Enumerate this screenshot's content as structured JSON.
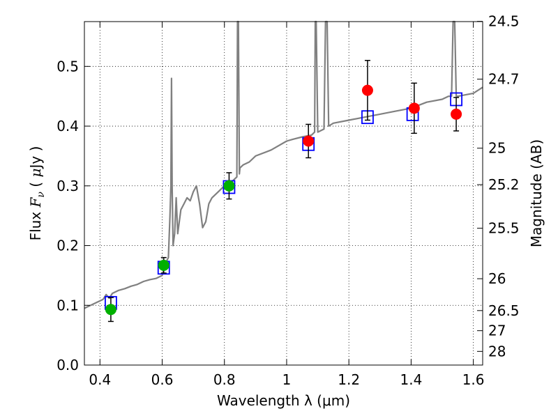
{
  "chart_data": {
    "type": "scatter",
    "title": "",
    "xlabel": "Wavelength  λ (μm)",
    "ylabel_parts": [
      "Flux  ",
      "F",
      "ν",
      "  ( ",
      "μ",
      "Jy )"
    ],
    "y2label": "Magnitude (AB)",
    "xlim": [
      0.35,
      1.63
    ],
    "ylim": [
      0.0,
      0.575
    ],
    "grid": true,
    "x_ticks": [
      0.4,
      0.6,
      0.8,
      1.0,
      1.2,
      1.4,
      1.6
    ],
    "x_tick_labels": [
      "0.4",
      "0.6",
      "0.8",
      "1",
      "1.2",
      "1.4",
      "1.6"
    ],
    "y_ticks": [
      0.0,
      0.1,
      0.2,
      0.3,
      0.4,
      0.5
    ],
    "y_tick_labels": [
      "0.0",
      "0.1",
      "0.2",
      "0.3",
      "0.4",
      "0.5"
    ],
    "y2_ticks": [
      24.5,
      24.7,
      25,
      25.2,
      25.5,
      26,
      26.5,
      27,
      28
    ],
    "y2_tick_labels": [
      "24.5",
      "24.7",
      "25",
      "25.2",
      "25.5",
      "26",
      "26.5",
      "27",
      "28"
    ],
    "colors": {
      "spectrum": "#808080",
      "green": "#00b000",
      "red": "#ff0000",
      "model": "#0000ff",
      "errorbar": "#000000"
    },
    "series": [
      {
        "name": "spectrum",
        "kind": "line",
        "x": [
          0.35,
          0.37,
          0.39,
          0.41,
          0.42,
          0.43,
          0.44,
          0.46,
          0.48,
          0.5,
          0.52,
          0.54,
          0.56,
          0.58,
          0.6,
          0.61,
          0.62,
          0.625,
          0.628,
          0.63,
          0.632,
          0.635,
          0.64,
          0.645,
          0.65,
          0.66,
          0.67,
          0.68,
          0.69,
          0.7,
          0.71,
          0.72,
          0.73,
          0.74,
          0.75,
          0.76,
          0.78,
          0.8,
          0.82,
          0.83,
          0.84,
          0.842,
          0.845,
          0.848,
          0.85,
          0.86,
          0.88,
          0.9,
          0.95,
          1.0,
          1.02,
          1.05,
          1.08,
          1.09,
          1.092,
          1.095,
          1.1,
          1.12,
          1.125,
          1.13,
          1.135,
          1.15,
          1.2,
          1.25,
          1.3,
          1.35,
          1.4,
          1.45,
          1.5,
          1.52,
          1.53,
          1.535,
          1.54,
          1.545,
          1.55,
          1.6,
          1.63
        ],
        "y": [
          0.095,
          0.1,
          0.105,
          0.11,
          0.118,
          0.112,
          0.12,
          0.125,
          0.128,
          0.132,
          0.135,
          0.14,
          0.143,
          0.145,
          0.15,
          0.17,
          0.18,
          0.25,
          0.3,
          0.48,
          0.3,
          0.2,
          0.22,
          0.28,
          0.22,
          0.26,
          0.27,
          0.28,
          0.275,
          0.29,
          0.3,
          0.27,
          0.23,
          0.24,
          0.27,
          0.28,
          0.29,
          0.3,
          0.305,
          0.31,
          0.315,
          0.575,
          0.575,
          0.32,
          0.33,
          0.335,
          0.34,
          0.35,
          0.36,
          0.375,
          0.378,
          0.382,
          0.385,
          0.39,
          0.575,
          0.575,
          0.39,
          0.395,
          0.575,
          0.575,
          0.4,
          0.405,
          0.41,
          0.415,
          0.42,
          0.425,
          0.43,
          0.44,
          0.445,
          0.45,
          0.45,
          0.575,
          0.575,
          0.45,
          0.45,
          0.455,
          0.465
        ]
      },
      {
        "name": "observed (green)",
        "kind": "points",
        "color": "green",
        "x": [
          0.435,
          0.605,
          0.815
        ],
        "y": [
          0.093,
          0.167,
          0.3
        ],
        "err": [
          0.02,
          0.013,
          0.022
        ]
      },
      {
        "name": "observed (red)",
        "kind": "points",
        "color": "red",
        "x": [
          1.07,
          1.26,
          1.41,
          1.545
        ],
        "y": [
          0.375,
          0.46,
          0.43,
          0.42
        ],
        "err": [
          0.028,
          0.05,
          0.042,
          0.028
        ]
      },
      {
        "name": "model photometry",
        "kind": "squares",
        "color": "model",
        "x": [
          0.435,
          0.605,
          0.815,
          1.07,
          1.26,
          1.405,
          1.545
        ],
        "y": [
          0.104,
          0.163,
          0.298,
          0.37,
          0.415,
          0.42,
          0.445
        ]
      }
    ]
  }
}
